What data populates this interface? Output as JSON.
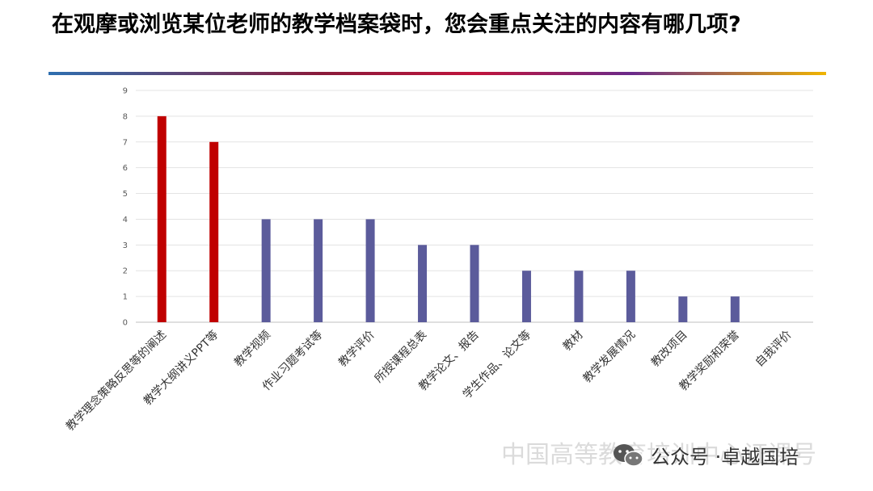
{
  "title": "在观摩或浏览某位老师的教学档案袋时，您会重点关注的内容有哪几项?",
  "watermark": {
    "faded_text": "中国高等教育培训中心证课号",
    "account_prefix": "公众号 · ",
    "account_name": "卓越国培",
    "icon": "wechat-icon"
  },
  "chart_data": {
    "type": "bar",
    "title": "在观摩或浏览某位老师的教学档案袋时，您会重点关注的内容有哪几项?",
    "xlabel": "",
    "ylabel": "",
    "ylim": [
      0,
      9
    ],
    "yticks": [
      0,
      1,
      2,
      3,
      4,
      5,
      6,
      7,
      8,
      9
    ],
    "grid": true,
    "legend": "none",
    "categories": [
      "教学理念策略反思等的阐述",
      "教学大纲讲义PPT等",
      "教学视频",
      "作业习题考试等",
      "教学评价",
      "所授课程总表",
      "教学论文、报告",
      "学生作品、论文等",
      "教材",
      "教学发展情况",
      "教改项目",
      "教学奖励和荣誉",
      "自我评价"
    ],
    "values": [
      8,
      7,
      4,
      4,
      4,
      3,
      3,
      2,
      2,
      2,
      1,
      1,
      0
    ],
    "highlight": [
      true,
      true,
      false,
      false,
      false,
      false,
      false,
      false,
      false,
      false,
      false,
      false,
      false
    ],
    "colors": {
      "highlight": "#c00000",
      "default": "#5b5b9b",
      "grid": "#e3e3e3",
      "axis": "#bfbfbf"
    }
  }
}
